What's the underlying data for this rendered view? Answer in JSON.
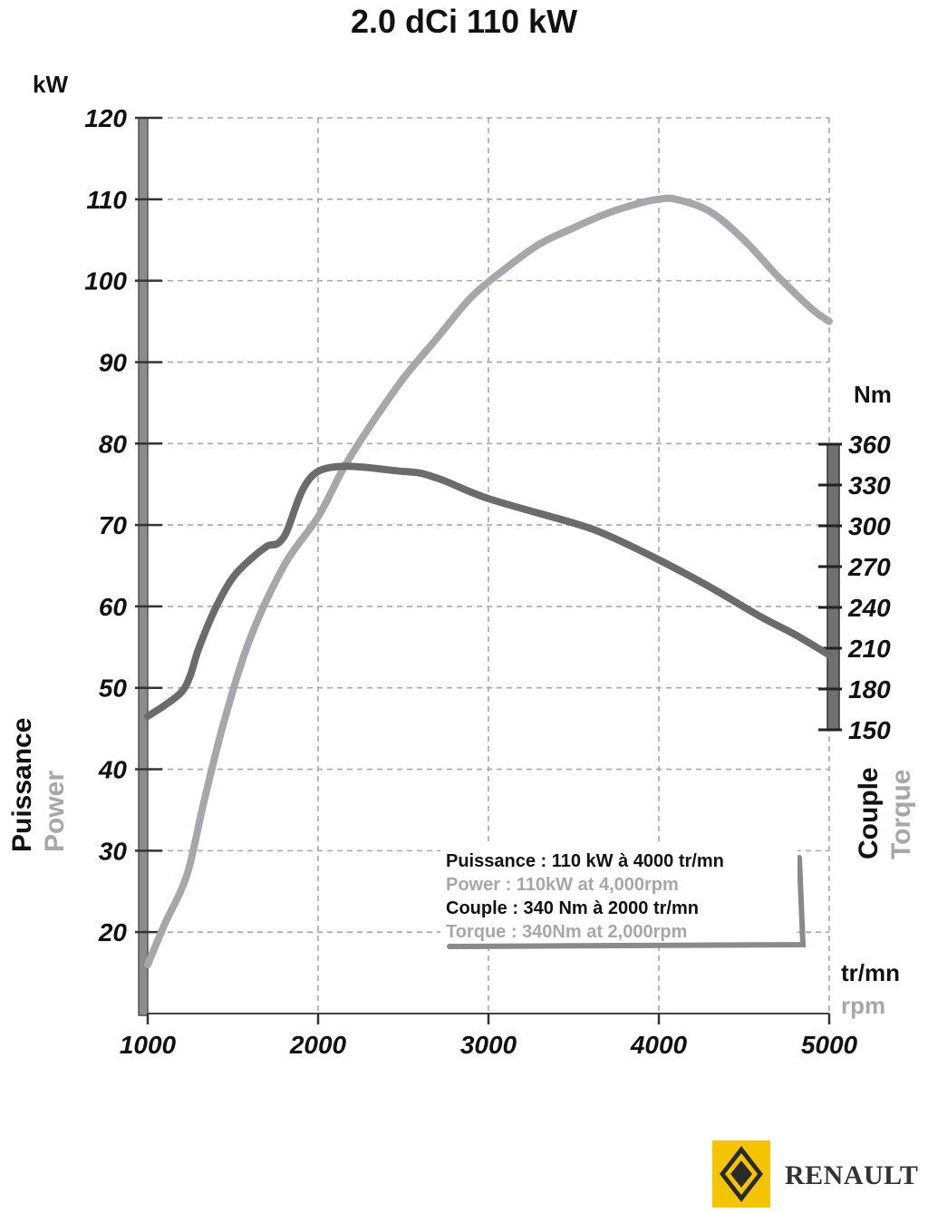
{
  "chart_data": {
    "type": "line",
    "title": "2.0 dCi 110 kW",
    "x_axis": {
      "unit_fr": "tr/mn",
      "unit_en": "rpm",
      "range": [
        1000,
        5000
      ],
      "ticks": [
        "1000",
        "2000",
        "3000",
        "4000",
        "5000"
      ]
    },
    "y_left": {
      "unit": "kW",
      "label_fr": "Puissance",
      "label_en": "Power",
      "range": [
        10,
        120
      ],
      "ticks": [
        "20",
        "30",
        "40",
        "50",
        "60",
        "70",
        "80",
        "90",
        "100",
        "110",
        "120"
      ]
    },
    "y_right": {
      "unit": "Nm",
      "label_fr": "Couple",
      "label_en": "Torque",
      "range": [
        150,
        360
      ],
      "ticks": [
        "150",
        "180",
        "210",
        "240",
        "270",
        "300",
        "330",
        "360"
      ]
    },
    "grid": true,
    "series": [
      {
        "axis": "left",
        "color": "#a6a6ab",
        "points": [
          [
            1000,
            16
          ],
          [
            1100,
            21
          ],
          [
            1230,
            27
          ],
          [
            1330,
            36
          ],
          [
            1450,
            46
          ],
          [
            1600,
            56
          ],
          [
            1800,
            65
          ],
          [
            2000,
            71
          ],
          [
            2150,
            77
          ],
          [
            2300,
            82
          ],
          [
            2500,
            88
          ],
          [
            2700,
            93
          ],
          [
            2900,
            98
          ],
          [
            3100,
            101.5
          ],
          [
            3300,
            104.5
          ],
          [
            3500,
            106.5
          ],
          [
            3700,
            108.3
          ],
          [
            3900,
            109.6
          ],
          [
            4000,
            110
          ],
          [
            4100,
            110
          ],
          [
            4300,
            108.5
          ],
          [
            4500,
            105
          ],
          [
            4700,
            100.5
          ],
          [
            4900,
            96.5
          ],
          [
            5000,
            95
          ]
        ]
      },
      {
        "axis": "right",
        "color": "#6b6b6b",
        "points": [
          [
            1000,
            160
          ],
          [
            1100,
            168
          ],
          [
            1200,
            178
          ],
          [
            1250,
            190
          ],
          [
            1300,
            210
          ],
          [
            1400,
            240
          ],
          [
            1500,
            262
          ],
          [
            1600,
            275
          ],
          [
            1700,
            285
          ],
          [
            1800,
            292
          ],
          [
            2000,
            340
          ],
          [
            2500,
            340
          ],
          [
            2700,
            335
          ],
          [
            3000,
            320
          ],
          [
            3500,
            302
          ],
          [
            3700,
            293
          ],
          [
            4000,
            275
          ],
          [
            4300,
            255
          ],
          [
            4600,
            233
          ],
          [
            4800,
            220
          ],
          [
            5000,
            205
          ]
        ]
      }
    ],
    "legend": {
      "placement": "bottom-right",
      "lines": [
        "Puissance : 110 kW à 4000 tr/mn",
        "Power : 110kW at 4,000rpm",
        "Couple : 340 Nm à 2000 tr/mn",
        "Torque : 340Nm at 2,000rpm"
      ]
    }
  },
  "colors": {
    "power": "#a6a6ab",
    "torque": "#6b6b6b",
    "text_dark": "#111111",
    "text_gray": "#a6a6ab",
    "logo_yellow": "#f5c400"
  },
  "branding": {
    "logo_icon": "renault-diamond-icon",
    "brand_name": "RENAULT"
  }
}
